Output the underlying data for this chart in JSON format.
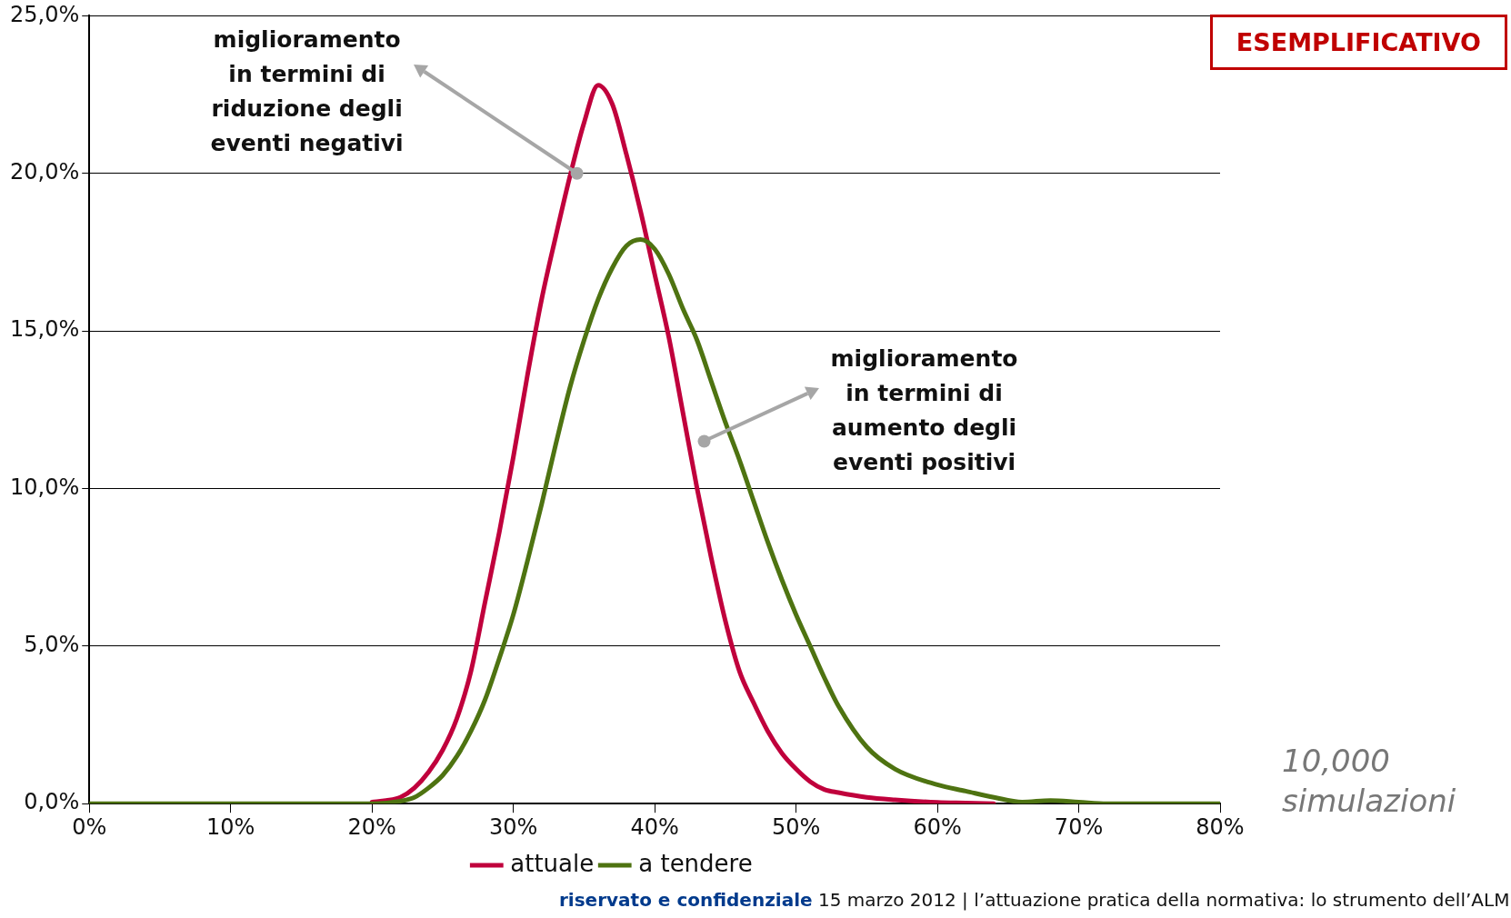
{
  "chart_data": {
    "type": "line",
    "x": [
      0,
      10,
      20,
      21,
      22,
      23,
      24,
      25,
      26,
      27,
      28,
      29,
      30,
      31,
      32,
      33,
      34,
      35,
      36,
      37,
      38,
      39,
      40,
      41,
      42,
      43,
      44,
      45,
      46,
      47,
      48,
      49,
      50,
      51,
      52,
      53,
      55,
      57,
      60,
      62,
      64,
      66,
      68,
      70,
      72,
      80
    ],
    "series": [
      {
        "name": "attuale",
        "color": "#c0003c",
        "values": [
          null,
          null,
          0.05,
          0.1,
          0.2,
          0.5,
          1.0,
          1.7,
          2.7,
          4.2,
          6.4,
          8.6,
          11.0,
          13.6,
          16.0,
          18.0,
          19.9,
          21.6,
          22.8,
          22.2,
          20.6,
          18.8,
          16.8,
          14.8,
          12.4,
          10.0,
          7.8,
          5.8,
          4.2,
          3.2,
          2.3,
          1.6,
          1.1,
          0.7,
          0.45,
          0.35,
          0.2,
          0.12,
          0.04,
          0.02,
          0,
          null,
          null,
          null,
          null,
          null
        ]
      },
      {
        "name": "a tendere",
        "color": "#4e7311",
        "values": [
          0,
          0,
          0,
          0.02,
          0.08,
          0.2,
          0.5,
          0.9,
          1.5,
          2.3,
          3.3,
          4.6,
          6.0,
          7.7,
          9.5,
          11.4,
          13.2,
          14.7,
          16.0,
          17.0,
          17.7,
          17.9,
          17.6,
          16.8,
          15.7,
          14.7,
          13.4,
          12.1,
          10.9,
          9.6,
          8.3,
          7.1,
          6.0,
          5.0,
          4.0,
          3.1,
          1.8,
          1.1,
          0.6,
          0.4,
          0.2,
          0.05,
          0.1,
          0.05,
          0,
          0
        ]
      }
    ],
    "xlim": [
      0,
      80
    ],
    "xticks": [
      {
        "value": 0,
        "label": "0%"
      },
      {
        "value": 10,
        "label": "10%"
      },
      {
        "value": 20,
        "label": "20%"
      },
      {
        "value": 30,
        "label": "30%"
      },
      {
        "value": 40,
        "label": "40%"
      },
      {
        "value": 50,
        "label": "50%"
      },
      {
        "value": 60,
        "label": "60%"
      },
      {
        "value": 70,
        "label": "70%"
      },
      {
        "value": 80,
        "label": "80%"
      }
    ],
    "ylim": [
      0,
      25
    ],
    "yticks": [
      {
        "value": 0,
        "label": "0,0%"
      },
      {
        "value": 5,
        "label": "5,0%"
      },
      {
        "value": 10,
        "label": "10,0%"
      },
      {
        "value": 15,
        "label": "15,0%"
      },
      {
        "value": 20,
        "label": "20,0%"
      },
      {
        "value": 25,
        "label": "25,0%"
      }
    ],
    "grid": "y",
    "legend": "bottom",
    "marker": "none",
    "line_style": "solid",
    "annotations": [
      "ESEMPLIFICATIVO",
      {
        "text": "miglioramento\nin termini di\nriduzione degli\neventi negativi",
        "x": 34.5,
        "y": 20
      },
      {
        "text": "miglioramento\nin termini di\naumento degli\neventi positivi",
        "x": 43.5,
        "y": 11.5
      },
      "10,000\nsimulazioni",
      "riservato e confidenziale",
      "15 marzo 2012 | l’attuazione pratica della normativa: lo strumento dell’ALM"
    ]
  }
}
